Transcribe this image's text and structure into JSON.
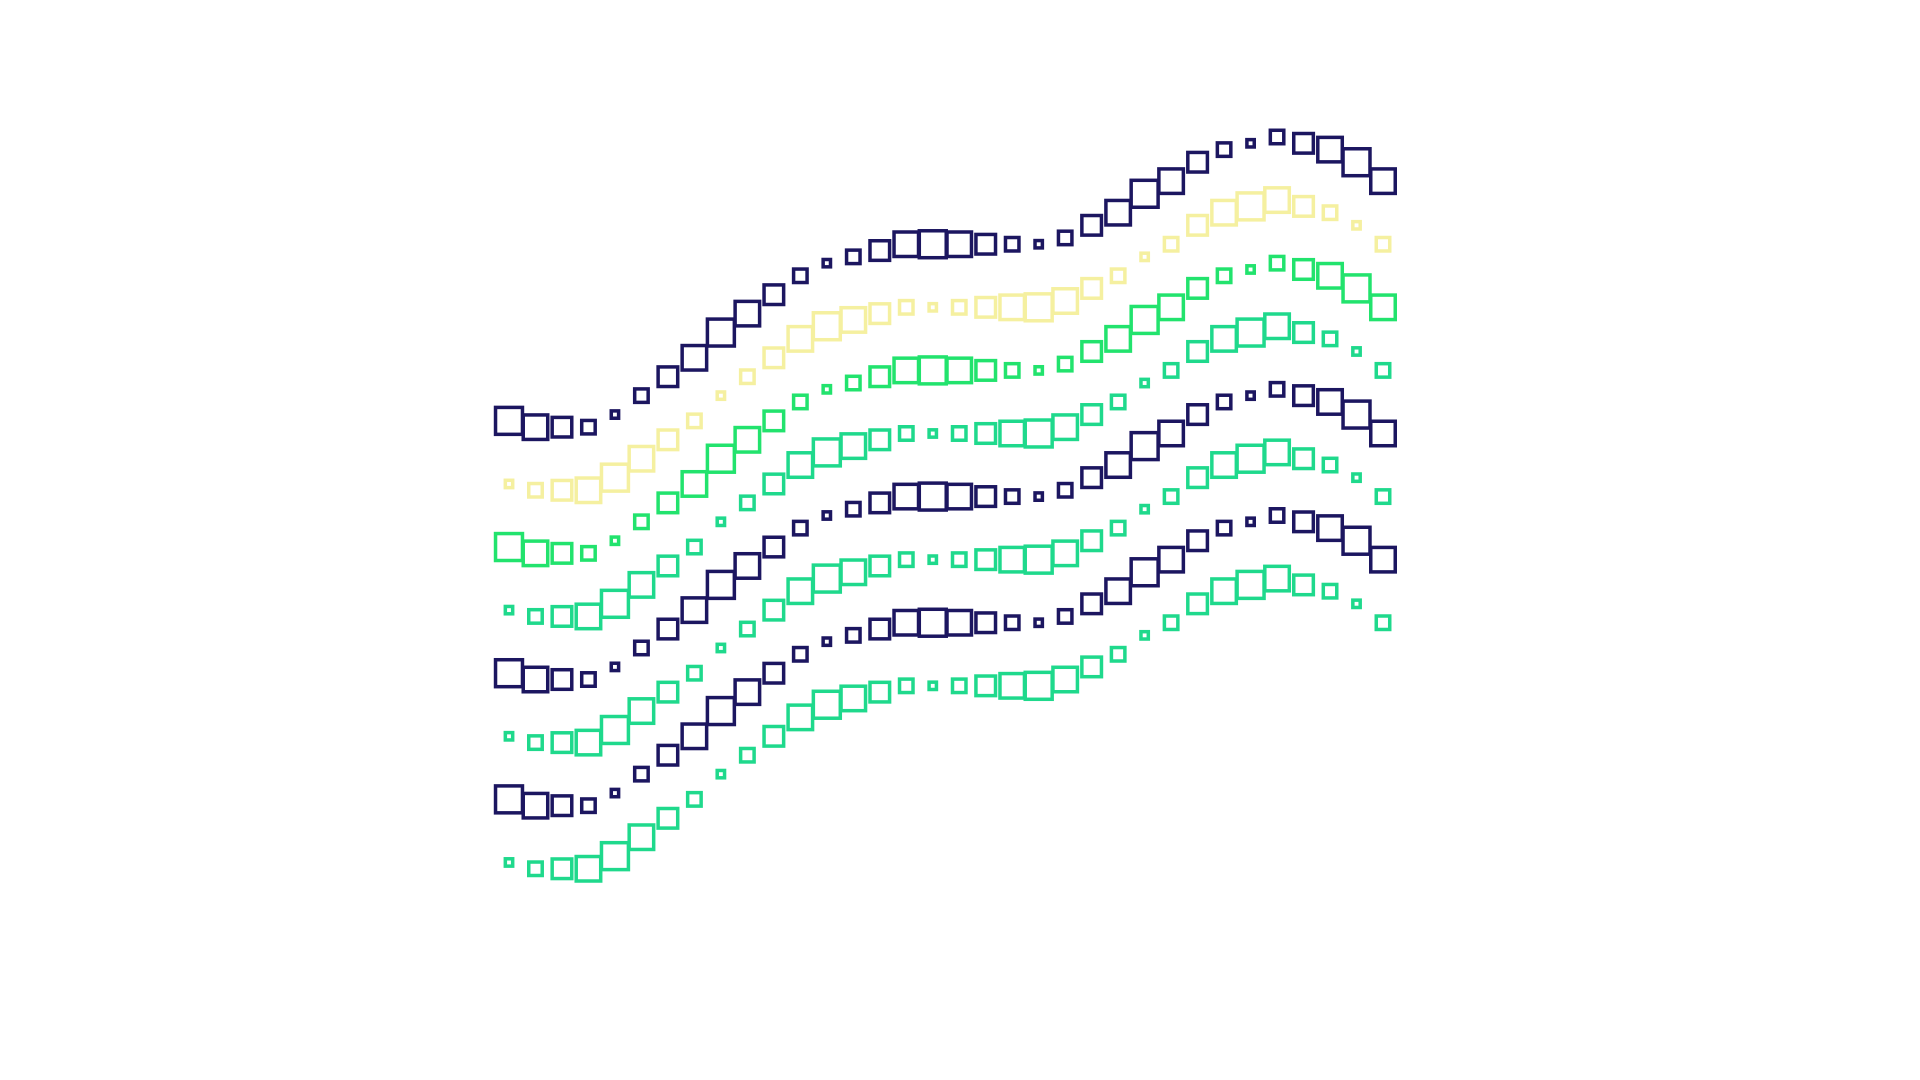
{
  "chart_data": {
    "type": "scatter",
    "marker": "square-open",
    "x": [
      0,
      1,
      2,
      3,
      4,
      5,
      6,
      7,
      8,
      9,
      10,
      11,
      12,
      13,
      14,
      15,
      16,
      17,
      18,
      19,
      20,
      21,
      22,
      23,
      24,
      25,
      26,
      27,
      28,
      29,
      30,
      31,
      32,
      33
    ],
    "xlim": [
      0,
      33
    ],
    "ylim": [
      0,
      12
    ],
    "series": [
      {
        "color": "#1c1660",
        "values": [
          7.5,
          7.4,
          7.4,
          7.4,
          7.6,
          7.9,
          8.2,
          8.5,
          8.9,
          9.2,
          9.5,
          9.8,
          10.0,
          10.1,
          10.2,
          10.3,
          10.3,
          10.3,
          10.3,
          10.3,
          10.3,
          10.4,
          10.6,
          10.8,
          11.1,
          11.3,
          11.6,
          11.8,
          11.9,
          12.0,
          11.9,
          11.8,
          11.6,
          11.3
        ],
        "sizes": [
          22,
          20,
          16,
          11,
          6,
          11,
          16,
          20,
          22,
          20,
          16,
          11,
          6,
          11,
          16,
          20,
          22,
          20,
          16,
          11,
          6,
          11,
          16,
          20,
          22,
          20,
          16,
          11,
          6,
          11,
          16,
          20,
          22,
          20
        ]
      },
      {
        "color": "#f5f0a0",
        "values": [
          6.5,
          6.4,
          6.4,
          6.4,
          6.6,
          6.9,
          7.2,
          7.5,
          7.9,
          8.2,
          8.5,
          8.8,
          9.0,
          9.1,
          9.2,
          9.3,
          9.3,
          9.3,
          9.3,
          9.3,
          9.3,
          9.4,
          9.6,
          9.8,
          10.1,
          10.3,
          10.6,
          10.8,
          10.9,
          11.0,
          10.9,
          10.8,
          10.6,
          10.3
        ],
        "sizes": [
          6,
          11,
          16,
          20,
          22,
          20,
          16,
          11,
          6,
          11,
          16,
          20,
          22,
          20,
          16,
          11,
          6,
          11,
          16,
          20,
          22,
          20,
          16,
          11,
          6,
          11,
          16,
          20,
          22,
          20,
          16,
          11,
          6,
          11
        ]
      },
      {
        "color": "#22e36d",
        "values": [
          5.5,
          5.4,
          5.4,
          5.4,
          5.6,
          5.9,
          6.2,
          6.5,
          6.9,
          7.2,
          7.5,
          7.8,
          8.0,
          8.1,
          8.2,
          8.3,
          8.3,
          8.3,
          8.3,
          8.3,
          8.3,
          8.4,
          8.6,
          8.8,
          9.1,
          9.3,
          9.6,
          9.8,
          9.9,
          10.0,
          9.9,
          9.8,
          9.6,
          9.3
        ],
        "sizes": [
          22,
          20,
          16,
          11,
          6,
          11,
          16,
          20,
          22,
          20,
          16,
          11,
          6,
          11,
          16,
          20,
          22,
          20,
          16,
          11,
          6,
          11,
          16,
          20,
          22,
          20,
          16,
          11,
          6,
          11,
          16,
          20,
          22,
          20
        ]
      },
      {
        "color": "#1fd98c",
        "values": [
          4.5,
          4.4,
          4.4,
          4.4,
          4.6,
          4.9,
          5.2,
          5.5,
          5.9,
          6.2,
          6.5,
          6.8,
          7.0,
          7.1,
          7.2,
          7.3,
          7.3,
          7.3,
          7.3,
          7.3,
          7.3,
          7.4,
          7.6,
          7.8,
          8.1,
          8.3,
          8.6,
          8.8,
          8.9,
          9.0,
          8.9,
          8.8,
          8.6,
          8.3
        ],
        "sizes": [
          6,
          11,
          16,
          20,
          22,
          20,
          16,
          11,
          6,
          11,
          16,
          20,
          22,
          20,
          16,
          11,
          6,
          11,
          16,
          20,
          22,
          20,
          16,
          11,
          6,
          11,
          16,
          20,
          22,
          20,
          16,
          11,
          6,
          11
        ]
      },
      {
        "color": "#1c1660",
        "values": [
          3.5,
          3.4,
          3.4,
          3.4,
          3.6,
          3.9,
          4.2,
          4.5,
          4.9,
          5.2,
          5.5,
          5.8,
          6.0,
          6.1,
          6.2,
          6.3,
          6.3,
          6.3,
          6.3,
          6.3,
          6.3,
          6.4,
          6.6,
          6.8,
          7.1,
          7.3,
          7.6,
          7.8,
          7.9,
          8.0,
          7.9,
          7.8,
          7.6,
          7.3
        ],
        "sizes": [
          22,
          20,
          16,
          11,
          6,
          11,
          16,
          20,
          22,
          20,
          16,
          11,
          6,
          11,
          16,
          20,
          22,
          20,
          16,
          11,
          6,
          11,
          16,
          20,
          22,
          20,
          16,
          11,
          6,
          11,
          16,
          20,
          22,
          20
        ]
      },
      {
        "color": "#1fd98c",
        "values": [
          2.5,
          2.4,
          2.4,
          2.4,
          2.6,
          2.9,
          3.2,
          3.5,
          3.9,
          4.2,
          4.5,
          4.8,
          5.0,
          5.1,
          5.2,
          5.3,
          5.3,
          5.3,
          5.3,
          5.3,
          5.3,
          5.4,
          5.6,
          5.8,
          6.1,
          6.3,
          6.6,
          6.8,
          6.9,
          7.0,
          6.9,
          6.8,
          6.6,
          6.3
        ],
        "sizes": [
          6,
          11,
          16,
          20,
          22,
          20,
          16,
          11,
          6,
          11,
          16,
          20,
          22,
          20,
          16,
          11,
          6,
          11,
          16,
          20,
          22,
          20,
          16,
          11,
          6,
          11,
          16,
          20,
          22,
          20,
          16,
          11,
          6,
          11
        ]
      },
      {
        "color": "#1c1660",
        "values": [
          1.5,
          1.4,
          1.4,
          1.4,
          1.6,
          1.9,
          2.2,
          2.5,
          2.9,
          3.2,
          3.5,
          3.8,
          4.0,
          4.1,
          4.2,
          4.3,
          4.3,
          4.3,
          4.3,
          4.3,
          4.3,
          4.4,
          4.6,
          4.8,
          5.1,
          5.3,
          5.6,
          5.8,
          5.9,
          6.0,
          5.9,
          5.8,
          5.6,
          5.3
        ],
        "sizes": [
          22,
          20,
          16,
          11,
          6,
          11,
          16,
          20,
          22,
          20,
          16,
          11,
          6,
          11,
          16,
          20,
          22,
          20,
          16,
          11,
          6,
          11,
          16,
          20,
          22,
          20,
          16,
          11,
          6,
          11,
          16,
          20,
          22,
          20
        ]
      },
      {
        "color": "#1fd98c",
        "values": [
          0.5,
          0.4,
          0.4,
          0.4,
          0.6,
          0.9,
          1.2,
          1.5,
          1.9,
          2.2,
          2.5,
          2.8,
          3.0,
          3.1,
          3.2,
          3.3,
          3.3,
          3.3,
          3.3,
          3.3,
          3.3,
          3.4,
          3.6,
          3.8,
          4.1,
          4.3,
          4.6,
          4.8,
          4.9,
          5.0,
          4.9,
          4.8,
          4.6,
          4.3
        ],
        "sizes": [
          6,
          11,
          16,
          20,
          22,
          20,
          16,
          11,
          6,
          11,
          16,
          20,
          22,
          20,
          16,
          11,
          6,
          11,
          16,
          20,
          22,
          20,
          16,
          11,
          6,
          11,
          16,
          20,
          22,
          20,
          16,
          11,
          6,
          11
        ]
      }
    ]
  }
}
